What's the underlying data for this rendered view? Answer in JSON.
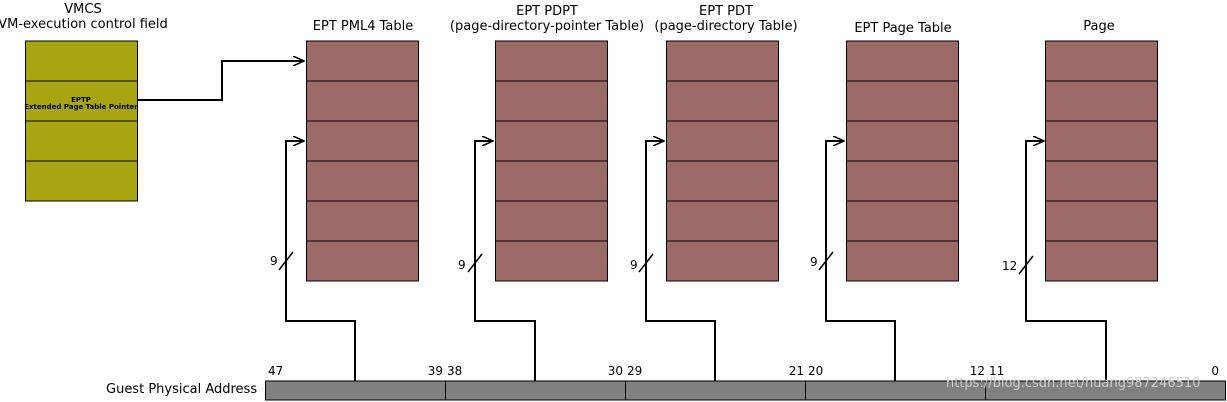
{
  "colors": {
    "vmcs_fill": "#a8a513",
    "table_fill": "#9b6a67",
    "address_fill": "#808080",
    "line": "#000000",
    "watermark": "#cfcfcf"
  },
  "vmcs": {
    "title": "VMCS",
    "subtitle": "VM-execution control field",
    "eptp_label": "EPTP",
    "eptp_desc": "Extended Page Table Pointer"
  },
  "tables": [
    {
      "title": "EPT PML4 Table",
      "subtitle": "",
      "index_bits": "9"
    },
    {
      "title": "EPT PDPT",
      "subtitle": "(page-directory-pointer Table)",
      "index_bits": "9"
    },
    {
      "title": "EPT PDT",
      "subtitle": "(page-directory Table)",
      "index_bits": "9"
    },
    {
      "title": "EPT Page Table",
      "subtitle": "",
      "index_bits": "9"
    },
    {
      "title": "Page",
      "subtitle": "",
      "index_bits": "12"
    }
  ],
  "address": {
    "label": "Guest Physical Address",
    "fields": [
      {
        "high_bit": "47",
        "low_bit": "39"
      },
      {
        "high_bit": "38",
        "low_bit": "30"
      },
      {
        "high_bit": "29",
        "low_bit": "21"
      },
      {
        "high_bit": "20",
        "low_bit": "12"
      },
      {
        "high_bit": "11",
        "low_bit": "0"
      }
    ]
  },
  "watermark": "https://blog.csdn.net/huang987246510"
}
